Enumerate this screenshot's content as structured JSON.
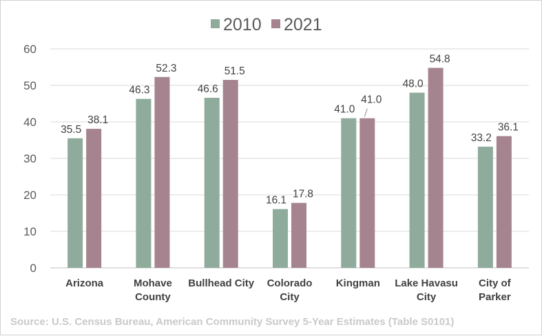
{
  "chart_data": {
    "type": "bar",
    "categories": [
      [
        "Arizona"
      ],
      [
        "Mohave",
        "County"
      ],
      [
        "Bullhead City"
      ],
      [
        "Colorado",
        "City"
      ],
      [
        "Kingman"
      ],
      [
        "Lake Havasu",
        "City"
      ],
      [
        "City of",
        "Parker"
      ]
    ],
    "series": [
      {
        "name": "2010",
        "color": "#8fab9c",
        "values": [
          35.5,
          46.3,
          46.6,
          16.1,
          41.0,
          48.0,
          33.2
        ]
      },
      {
        "name": "2021",
        "color": "#a5848f",
        "values": [
          38.1,
          52.3,
          51.5,
          17.8,
          41.0,
          54.8,
          36.1
        ]
      }
    ],
    "ylim": [
      0,
      60
    ],
    "yticks": [
      0,
      10,
      20,
      30,
      40,
      50,
      60
    ],
    "grid": true,
    "legend": "top-center",
    "xlabel": "",
    "ylabel": ""
  },
  "source": "Source: U.S. Census Bureau, American Community Survey 5-Year Estimates (Table S0101)"
}
